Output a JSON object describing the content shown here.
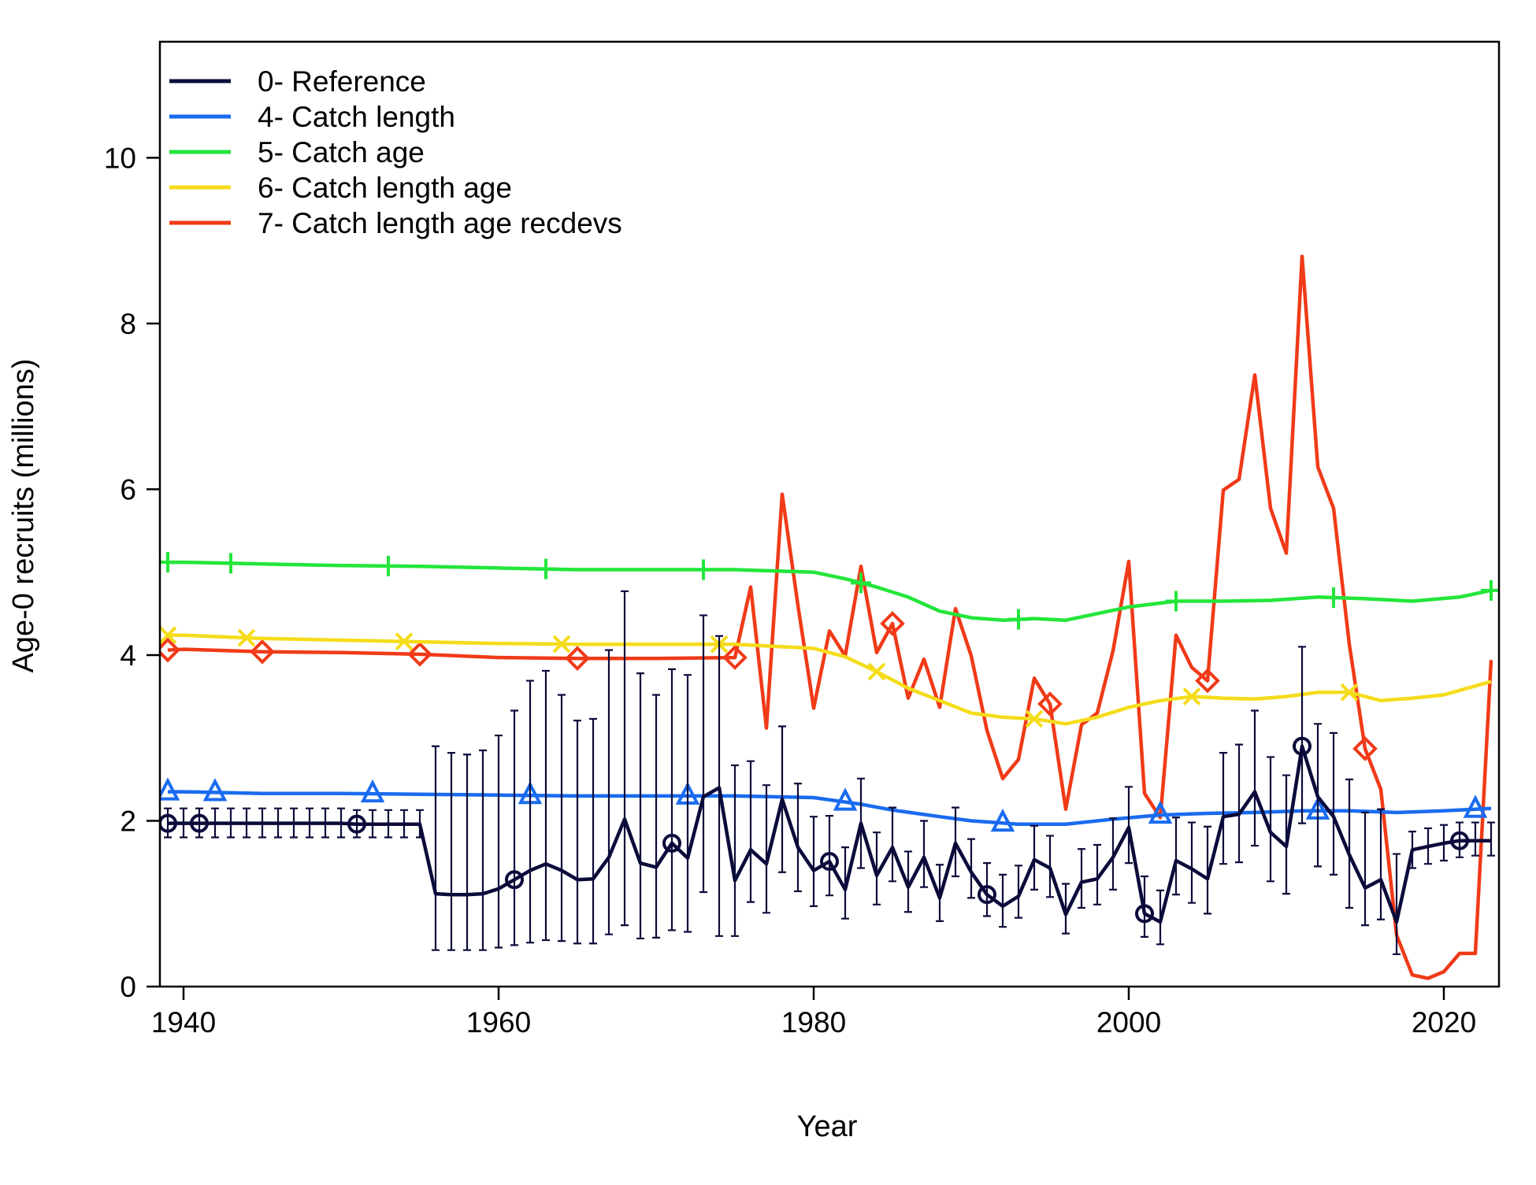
{
  "chart_data": {
    "type": "line",
    "xlabel": "Year",
    "ylabel": "Age-0 recruits (millions)",
    "xlim": [
      1938.5,
      2023.5
    ],
    "ylim": [
      0,
      11.4
    ],
    "x_ticks": [
      1940,
      1960,
      1980,
      2000,
      2020
    ],
    "y_ticks": [
      0,
      2,
      4,
      6,
      8,
      10
    ],
    "legend_position": "top-left",
    "grid": false,
    "series": [
      {
        "name": "0- Reference",
        "color": "#0b0b3b",
        "marker": "circle",
        "x": [
          1939,
          1940,
          1941,
          1942,
          1943,
          1944,
          1945,
          1946,
          1947,
          1948,
          1949,
          1950,
          1951,
          1952,
          1953,
          1954,
          1955,
          1956,
          1957,
          1958,
          1959,
          1960,
          1961,
          1962,
          1963,
          1964,
          1965,
          1966,
          1967,
          1968,
          1969,
          1970,
          1971,
          1972,
          1973,
          1974,
          1975,
          1976,
          1977,
          1978,
          1979,
          1980,
          1981,
          1982,
          1983,
          1984,
          1985,
          1986,
          1987,
          1988,
          1989,
          1990,
          1991,
          1992,
          1993,
          1994,
          1995,
          1996,
          1997,
          1998,
          1999,
          2000,
          2001,
          2002,
          2003,
          2004,
          2005,
          2006,
          2007,
          2008,
          2009,
          2010,
          2011,
          2012,
          2013,
          2014,
          2015,
          2016,
          2017,
          2018,
          2019,
          2020,
          2021,
          2022,
          2023
        ],
        "y": [
          1.97,
          1.97,
          1.97,
          1.97,
          1.97,
          1.97,
          1.97,
          1.97,
          1.97,
          1.97,
          1.97,
          1.97,
          1.96,
          1.96,
          1.96,
          1.96,
          1.96,
          1.12,
          1.11,
          1.11,
          1.12,
          1.18,
          1.29,
          1.4,
          1.48,
          1.4,
          1.29,
          1.3,
          1.56,
          2.02,
          1.49,
          1.44,
          1.73,
          1.55,
          2.29,
          2.4,
          1.28,
          1.65,
          1.48,
          2.26,
          1.68,
          1.4,
          1.51,
          1.17,
          1.97,
          1.34,
          1.68,
          1.2,
          1.56,
          1.07,
          1.73,
          1.38,
          1.11,
          0.97,
          1.09,
          1.53,
          1.43,
          0.87,
          1.26,
          1.3,
          1.56,
          1.92,
          0.88,
          0.78,
          1.52,
          1.42,
          1.3,
          2.05,
          2.08,
          2.35,
          1.86,
          1.69,
          2.9,
          2.29,
          2.05,
          1.59,
          1.19,
          1.29,
          0.78,
          1.65,
          1.69,
          1.73,
          1.76,
          1.76,
          1.76
        ],
        "lower": [
          1.8,
          1.8,
          1.8,
          1.8,
          1.8,
          1.8,
          1.8,
          1.8,
          1.8,
          1.8,
          1.8,
          1.8,
          1.8,
          1.8,
          1.8,
          1.8,
          1.8,
          0.44,
          0.44,
          0.44,
          0.44,
          0.47,
          0.5,
          0.53,
          0.56,
          0.55,
          0.52,
          0.52,
          0.63,
          0.74,
          0.58,
          0.59,
          0.68,
          0.66,
          1.14,
          0.61,
          0.61,
          1.02,
          0.89,
          1.38,
          1.15,
          0.97,
          1.1,
          0.82,
          1.43,
          0.99,
          1.27,
          0.9,
          1.2,
          0.79,
          1.33,
          1.07,
          0.85,
          0.72,
          0.83,
          1.17,
          1.08,
          0.64,
          0.95,
          0.99,
          1.17,
          1.49,
          0.6,
          0.51,
          1.11,
          1.01,
          0.88,
          1.48,
          1.5,
          1.7,
          1.27,
          1.12,
          1.97,
          1.45,
          1.35,
          0.95,
          0.74,
          0.81,
          0.39,
          1.43,
          1.48,
          1.52,
          1.56,
          1.58,
          1.58
        ],
        "upper": [
          2.15,
          2.15,
          2.15,
          2.15,
          2.15,
          2.15,
          2.15,
          2.15,
          2.15,
          2.15,
          2.15,
          2.15,
          2.13,
          2.13,
          2.13,
          2.13,
          2.13,
          2.9,
          2.82,
          2.8,
          2.85,
          3.03,
          3.33,
          3.69,
          3.81,
          3.52,
          3.21,
          3.23,
          4.06,
          4.77,
          3.78,
          3.52,
          3.83,
          3.76,
          4.48,
          4.23,
          2.67,
          2.72,
          2.43,
          3.14,
          2.45,
          2.05,
          2.06,
          1.68,
          2.51,
          1.86,
          2.16,
          1.63,
          2.0,
          1.47,
          2.16,
          1.78,
          1.49,
          1.35,
          1.46,
          1.94,
          1.82,
          1.24,
          1.66,
          1.71,
          2.03,
          2.41,
          1.33,
          1.16,
          2.04,
          1.98,
          1.93,
          2.82,
          2.92,
          3.33,
          2.77,
          2.55,
          4.1,
          3.17,
          3.06,
          2.5,
          2.1,
          2.14,
          1.6,
          1.87,
          1.91,
          1.95,
          1.98,
          1.98,
          1.98
        ],
        "marker_x": [
          1939,
          1941,
          1951,
          1961,
          1971,
          1981,
          1991,
          2001,
          2011,
          2021
        ]
      },
      {
        "name": "4- Catch length",
        "color": "#1a6bf0",
        "marker": "triangle",
        "x": [
          1939,
          1940,
          1945,
          1950,
          1955,
          1960,
          1965,
          1970,
          1975,
          1980,
          1983,
          1985,
          1988,
          1990,
          1993,
          1996,
          1999,
          2002,
          2005,
          2008,
          2011,
          2014,
          2017,
          2020,
          2023
        ],
        "y": [
          2.35,
          2.35,
          2.33,
          2.33,
          2.32,
          2.31,
          2.3,
          2.3,
          2.3,
          2.28,
          2.2,
          2.13,
          2.05,
          2.0,
          1.96,
          1.96,
          2.02,
          2.07,
          2.09,
          2.1,
          2.12,
          2.12,
          2.1,
          2.12,
          2.15
        ],
        "marker_x": [
          1939,
          1942,
          1952,
          1962,
          1972,
          1982,
          1992,
          2002,
          2012,
          2022
        ]
      },
      {
        "name": "5- Catch age",
        "color": "#22e63a",
        "marker": "plus",
        "x": [
          1939,
          1940,
          1945,
          1950,
          1955,
          1960,
          1965,
          1970,
          1975,
          1980,
          1982,
          1984,
          1986,
          1988,
          1990,
          1992,
          1994,
          1996,
          1998,
          2000,
          2003,
          2006,
          2009,
          2012,
          2015,
          2018,
          2021,
          2023
        ],
        "y": [
          5.12,
          5.12,
          5.1,
          5.08,
          5.07,
          5.05,
          5.03,
          5.03,
          5.03,
          5.0,
          4.92,
          4.82,
          4.7,
          4.53,
          4.45,
          4.42,
          4.44,
          4.42,
          4.5,
          4.58,
          4.65,
          4.65,
          4.66,
          4.7,
          4.68,
          4.65,
          4.7,
          4.78
        ],
        "marker_x": [
          1939,
          1943,
          1953,
          1963,
          1973,
          1983,
          1993,
          2003,
          2013,
          2023
        ]
      },
      {
        "name": "6- Catch length age",
        "color": "#f5dc1a",
        "marker": "cross",
        "x": [
          1939,
          1940,
          1945,
          1950,
          1955,
          1960,
          1965,
          1970,
          1975,
          1980,
          1982,
          1984,
          1986,
          1988,
          1990,
          1992,
          1994,
          1996,
          1998,
          2000,
          2002,
          2004,
          2006,
          2008,
          2010,
          2012,
          2014,
          2016,
          2018,
          2020,
          2023
        ],
        "y": [
          4.24,
          4.24,
          4.2,
          4.18,
          4.16,
          4.14,
          4.13,
          4.13,
          4.13,
          4.08,
          3.98,
          3.8,
          3.6,
          3.45,
          3.3,
          3.25,
          3.23,
          3.17,
          3.25,
          3.37,
          3.45,
          3.5,
          3.48,
          3.47,
          3.5,
          3.55,
          3.55,
          3.45,
          3.48,
          3.52,
          3.68
        ],
        "marker_x": [
          1939,
          1944,
          1954,
          1964,
          1974,
          1984,
          1994,
          2004,
          2014
        ]
      },
      {
        "name": "7- Catch length age recdevs",
        "color": "#f03a18",
        "marker": "diamond",
        "x": [
          1939,
          1940,
          1945,
          1950,
          1955,
          1960,
          1965,
          1970,
          1975,
          1976,
          1977,
          1978,
          1979,
          1980,
          1981,
          1982,
          1983,
          1984,
          1985,
          1986,
          1987,
          1988,
          1989,
          1990,
          1991,
          1992,
          1993,
          1994,
          1995,
          1996,
          1997,
          1998,
          1999,
          2000,
          2001,
          2002,
          2003,
          2004,
          2005,
          2006,
          2007,
          2008,
          2009,
          2010,
          2011,
          2012,
          2013,
          2014,
          2015,
          2016,
          2017,
          2018,
          2019,
          2020,
          2021,
          2022,
          2023
        ],
        "y": [
          4.06,
          4.07,
          4.04,
          4.03,
          4.01,
          3.97,
          3.96,
          3.96,
          3.97,
          4.82,
          3.12,
          5.94,
          4.6,
          3.36,
          4.29,
          3.99,
          5.07,
          4.03,
          4.38,
          3.48,
          3.95,
          3.37,
          4.56,
          3.99,
          3.09,
          2.51,
          2.74,
          3.72,
          3.41,
          2.14,
          3.16,
          3.3,
          4.05,
          5.13,
          2.33,
          2.04,
          4.24,
          3.85,
          3.69,
          5.99,
          6.12,
          7.38,
          5.77,
          5.23,
          8.81,
          6.27,
          5.77,
          4.13,
          2.87,
          2.38,
          0.62,
          0.14,
          0.1,
          0.18,
          0.4,
          0.4,
          3.94
        ],
        "marker_x": [
          1939,
          1945,
          1955,
          1965,
          1975,
          1985,
          1995,
          2005,
          2015
        ]
      }
    ]
  }
}
